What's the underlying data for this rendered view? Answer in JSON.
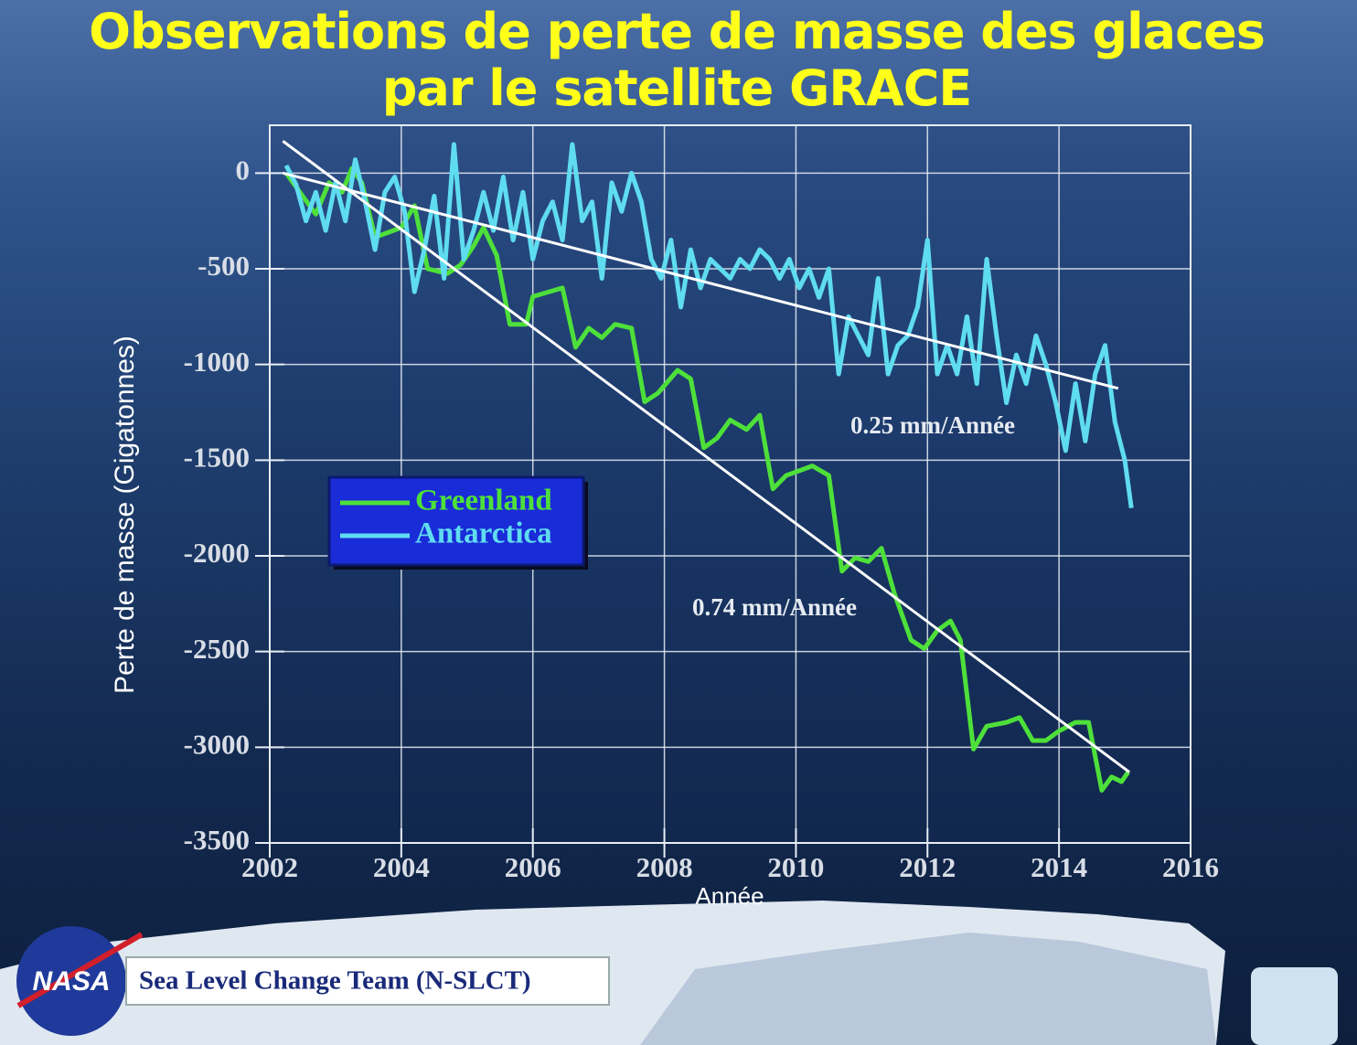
{
  "chart_data": {
    "type": "line",
    "title": "Observations de perte de masse des glaces par le satellite GRACE",
    "x_label": "Année",
    "y_label": "Perte de masse (Gigatonnes)",
    "xlim": [
      2002,
      2016
    ],
    "ylim": [
      -3500,
      250
    ],
    "xticks": [
      2002,
      2004,
      2006,
      2008,
      2010,
      2012,
      2014,
      2016
    ],
    "yticks": [
      0,
      -500,
      -1000,
      -1500,
      -2000,
      -2500,
      -3000,
      -3500
    ],
    "grid": true,
    "legend": "left",
    "series": [
      {
        "name": "Greenland",
        "color": "#4ee03a",
        "x": [
          2002.25,
          2002.5,
          2002.7,
          2002.9,
          2003.1,
          2003.25,
          2003.4,
          2003.6,
          2003.8,
          2004.0,
          2004.2,
          2004.4,
          2004.7,
          2004.9,
          2005.1,
          2005.25,
          2005.45,
          2005.65,
          2005.9,
          2006.0,
          2006.25,
          2006.45,
          2006.65,
          2006.85,
          2007.05,
          2007.25,
          2007.5,
          2007.7,
          2007.9,
          2008.2,
          2008.4,
          2008.6,
          2008.8,
          2009.0,
          2009.25,
          2009.45,
          2009.65,
          2009.85,
          2010.05,
          2010.25,
          2010.5,
          2010.7,
          2010.9,
          2011.1,
          2011.3,
          2011.5,
          2011.75,
          2011.95,
          2012.15,
          2012.35,
          2012.5,
          2012.7,
          2012.9,
          2013.2,
          2013.4,
          2013.6,
          2013.8,
          2014.0,
          2014.25,
          2014.45,
          2014.65,
          2014.8,
          2014.95,
          2015.05
        ],
        "values": [
          0,
          -120,
          -215,
          -50,
          -100,
          25,
          -50,
          -335,
          -310,
          -285,
          -170,
          -500,
          -525,
          -480,
          -380,
          -285,
          -430,
          -790,
          -790,
          -645,
          -620,
          -600,
          -910,
          -810,
          -860,
          -790,
          -810,
          -1195,
          -1150,
          -1030,
          -1075,
          -1435,
          -1385,
          -1290,
          -1340,
          -1265,
          -1650,
          -1580,
          -1555,
          -1530,
          -1580,
          -2080,
          -2010,
          -2030,
          -1960,
          -2200,
          -2440,
          -2485,
          -2390,
          -2340,
          -2440,
          -3010,
          -2890,
          -2870,
          -2845,
          -2965,
          -2965,
          -2915,
          -2870,
          -2870,
          -3225,
          -3155,
          -3180,
          -3130
        ]
      },
      {
        "name": "Antarctica",
        "color": "#5fdcf0",
        "x": [
          2002.25,
          2002.4,
          2002.55,
          2002.7,
          2002.85,
          2003.0,
          2003.15,
          2003.3,
          2003.45,
          2003.6,
          2003.75,
          2003.9,
          2004.05,
          2004.2,
          2004.35,
          2004.5,
          2004.65,
          2004.8,
          2004.95,
          2005.1,
          2005.25,
          2005.4,
          2005.55,
          2005.7,
          2005.85,
          2006.0,
          2006.15,
          2006.3,
          2006.45,
          2006.6,
          2006.75,
          2006.9,
          2007.05,
          2007.2,
          2007.35,
          2007.5,
          2007.65,
          2007.8,
          2007.95,
          2008.1,
          2008.25,
          2008.4,
          2008.55,
          2008.7,
          2008.85,
          2009.0,
          2009.15,
          2009.3,
          2009.45,
          2009.6,
          2009.75,
          2009.9,
          2010.05,
          2010.2,
          2010.35,
          2010.5,
          2010.65,
          2010.8,
          2010.95,
          2011.1,
          2011.25,
          2011.4,
          2011.55,
          2011.7,
          2011.85,
          2012.0,
          2012.15,
          2012.3,
          2012.45,
          2012.6,
          2012.75,
          2012.9,
          2013.05,
          2013.2,
          2013.35,
          2013.5,
          2013.65,
          2013.8,
          2013.95,
          2014.1,
          2014.25,
          2014.4,
          2014.55,
          2014.7,
          2014.85,
          2015.0,
          2015.1
        ],
        "values": [
          40,
          -60,
          -250,
          -100,
          -300,
          -50,
          -250,
          70,
          -150,
          -400,
          -100,
          -20,
          -200,
          -620,
          -400,
          -120,
          -550,
          150,
          -450,
          -300,
          -100,
          -300,
          -20,
          -350,
          -100,
          -450,
          -250,
          -150,
          -350,
          150,
          -250,
          -150,
          -550,
          -50,
          -200,
          0,
          -150,
          -450,
          -550,
          -350,
          -700,
          -400,
          -600,
          -450,
          -500,
          -550,
          -450,
          -500,
          -400,
          -450,
          -550,
          -450,
          -600,
          -500,
          -650,
          -500,
          -1050,
          -750,
          -850,
          -950,
          -550,
          -1050,
          -900,
          -850,
          -700,
          -350,
          -1050,
          -900,
          -1050,
          -750,
          -1100,
          -450,
          -850,
          -1200,
          -950,
          -1100,
          -850,
          -1000,
          -1200,
          -1450,
          -1100,
          -1400,
          -1050,
          -900,
          -1300,
          -1500,
          -1750
        ]
      }
    ],
    "trend_lines": [
      {
        "color": "#ffffff",
        "x": [
          2002.2,
          2015.07
        ],
        "values": [
          167,
          -3130
        ]
      },
      {
        "color": "#ffffff",
        "x": [
          2002.2,
          2014.9
        ],
        "values": [
          0,
          -1125
        ]
      }
    ],
    "annotations": [
      "0.25 mm/Année",
      "0.74 mm/Année"
    ],
    "logo": "NASA",
    "footer": "Sea Level Change Team (N-SLCT)"
  }
}
